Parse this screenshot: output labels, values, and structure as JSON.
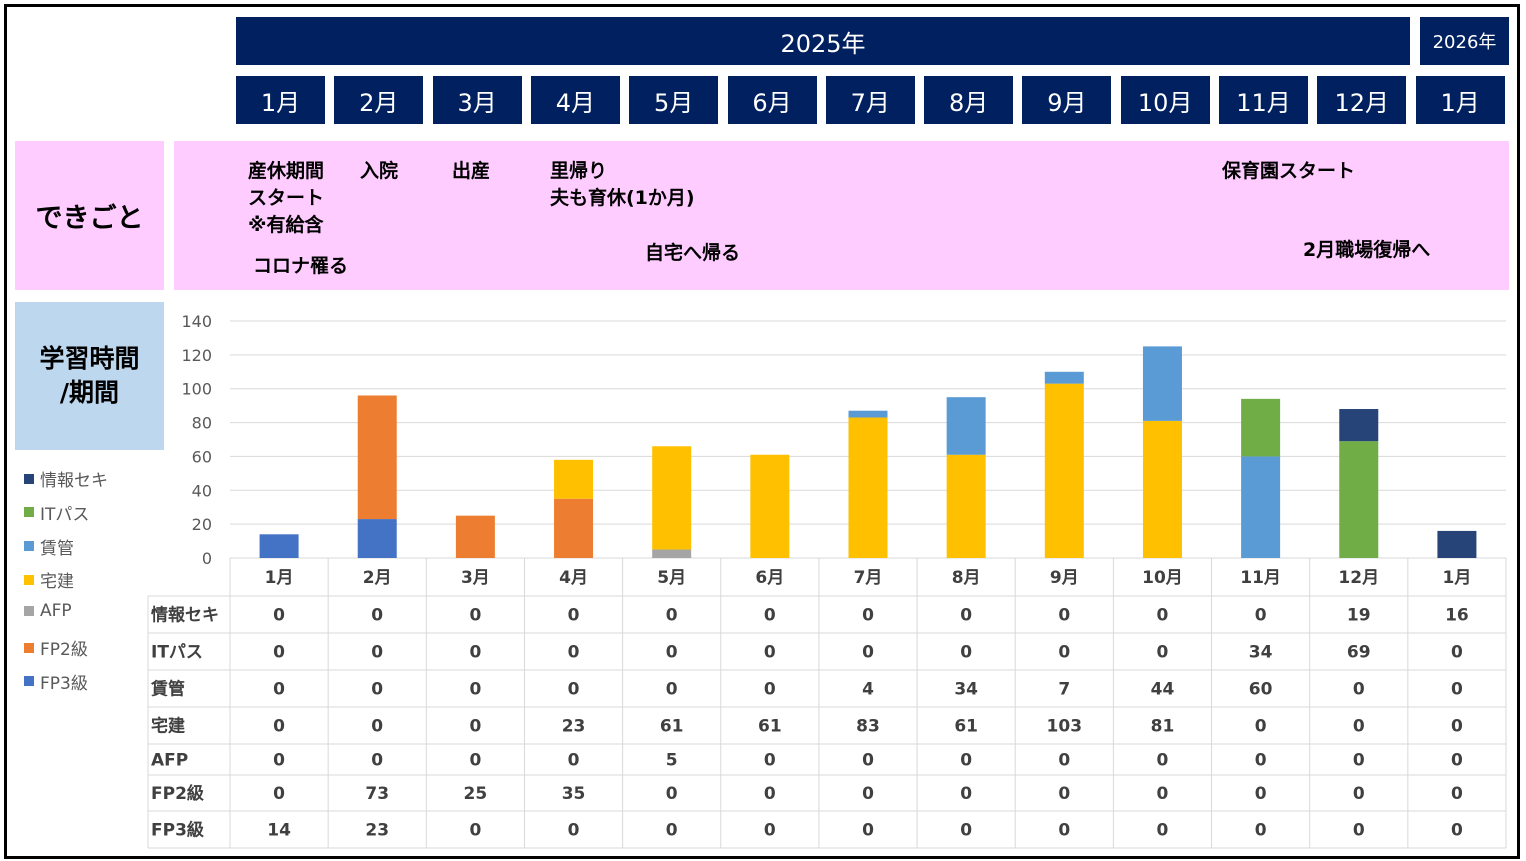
{
  "header": {
    "year_2025": "2025年",
    "year_2026": "2026年",
    "months": [
      "1月",
      "2月",
      "3月",
      "4月",
      "5月",
      "6月",
      "7月",
      "8月",
      "9月",
      "10月",
      "11月",
      "12月",
      "1月"
    ]
  },
  "events": {
    "label": "できごと",
    "items": [
      {
        "id": "maternity",
        "text": "産休期間\nスタート\n※有給含"
      },
      {
        "id": "covid",
        "text": "コロナ罹る"
      },
      {
        "id": "hospital",
        "text": "入院"
      },
      {
        "id": "birth",
        "text": "出産"
      },
      {
        "id": "homecoming",
        "text": "里帰り\n夫も育休(1か月)"
      },
      {
        "id": "return-home",
        "text": "自宅へ帰る"
      },
      {
        "id": "nursery",
        "text": "保育園スタート"
      },
      {
        "id": "work-return",
        "text": "2月職場復帰へ"
      }
    ]
  },
  "study": {
    "label_line1": "学習時間",
    "label_line2": "/期間"
  },
  "chart_data": {
    "type": "bar",
    "stacked": true,
    "categories": [
      "1月",
      "2月",
      "3月",
      "4月",
      "5月",
      "6月",
      "7月",
      "8月",
      "9月",
      "10月",
      "11月",
      "12月",
      "1月"
    ],
    "ylim": [
      0,
      140
    ],
    "yticks": [
      0,
      20,
      40,
      60,
      80,
      100,
      120,
      140
    ],
    "grid": true,
    "legend_position": "left",
    "series": [
      {
        "name": "FP3級",
        "color": "#4472c4",
        "values": [
          14,
          23,
          0,
          0,
          0,
          0,
          0,
          0,
          0,
          0,
          0,
          0,
          0
        ]
      },
      {
        "name": "FP2級",
        "color": "#ed7d31",
        "values": [
          0,
          73,
          25,
          35,
          0,
          0,
          0,
          0,
          0,
          0,
          0,
          0,
          0
        ]
      },
      {
        "name": "AFP",
        "color": "#a5a5a5",
        "values": [
          0,
          0,
          0,
          0,
          5,
          0,
          0,
          0,
          0,
          0,
          0,
          0,
          0
        ]
      },
      {
        "name": "宅建",
        "color": "#ffc000",
        "values": [
          0,
          0,
          0,
          23,
          61,
          61,
          83,
          61,
          103,
          81,
          0,
          0,
          0
        ]
      },
      {
        "name": "賃管",
        "color": "#5b9bd5",
        "values": [
          0,
          0,
          0,
          0,
          0,
          0,
          4,
          34,
          7,
          44,
          60,
          0,
          0
        ]
      },
      {
        "name": "ITパス",
        "color": "#70ad47",
        "values": [
          0,
          0,
          0,
          0,
          0,
          0,
          0,
          0,
          0,
          0,
          34,
          69,
          0
        ]
      },
      {
        "name": "情報セキ",
        "color": "#264478",
        "values": [
          0,
          0,
          0,
          0,
          0,
          0,
          0,
          0,
          0,
          0,
          0,
          19,
          16
        ]
      }
    ],
    "table_row_order": [
      "情報セキ",
      "ITパス",
      "賃管",
      "宅建",
      "AFP",
      "FP2級",
      "FP3級"
    ]
  }
}
